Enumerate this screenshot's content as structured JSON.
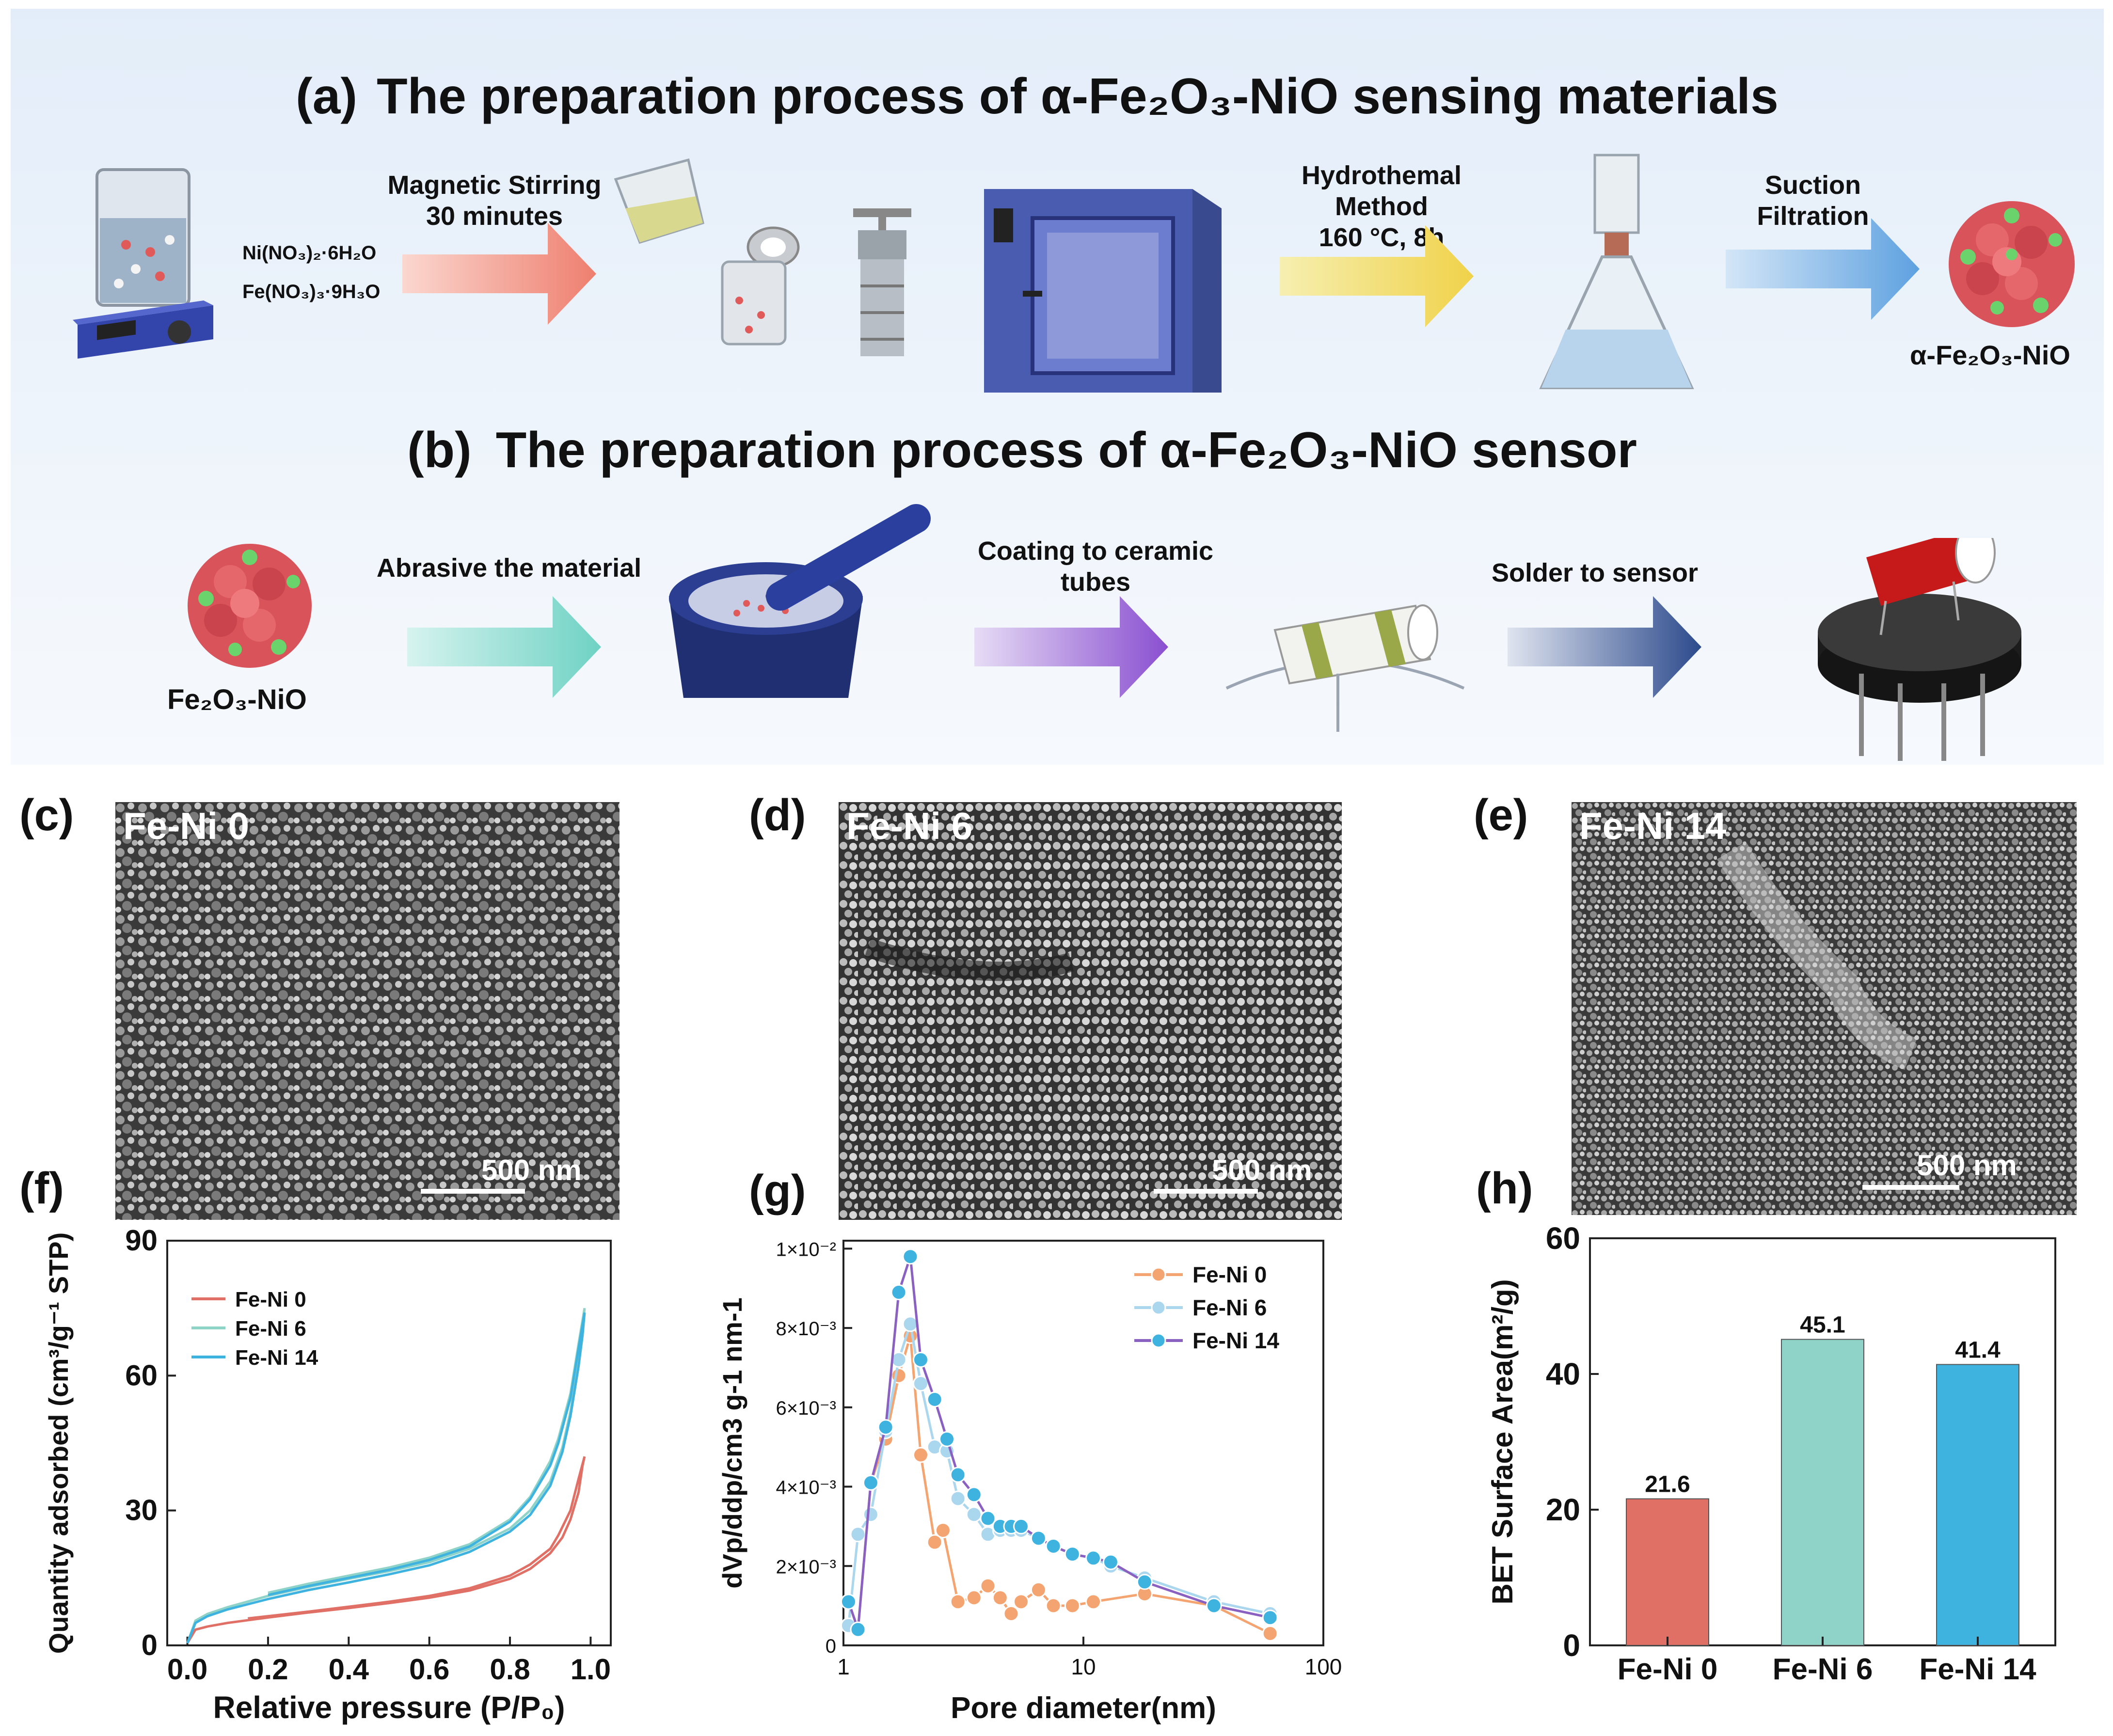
{
  "panel_a": {
    "letter": "(a)",
    "title": "The preparation process of α-Fe₂O₃-NiO sensing materials",
    "step1": [
      "Magnetic  Stirring",
      "30 minutes"
    ],
    "precursors": [
      "Ni(NO₃)₂·6H₂O",
      "Fe(NO₃)₃·9H₃O"
    ],
    "step2": [
      "Hydrothemal",
      "Method",
      "160 °C, 8h"
    ],
    "step3": [
      "Suction",
      "Filtration"
    ],
    "product": "α-Fe₂O₃-NiO"
  },
  "panel_b": {
    "letter": "(b)",
    "title": "The preparation process of α-Fe₂O₃-NiO sensor",
    "material": "Fe₂O₃-NiO",
    "step1": "Abrasive the material",
    "step2": [
      "Coating to ceramic",
      "tubes"
    ],
    "step3": "Solder to sensor"
  },
  "sem": [
    {
      "letter": "(c)",
      "label": "Fe-Ni 0",
      "scale": "500 nm"
    },
    {
      "letter": "(d)",
      "label": "Fe-Ni 6",
      "scale": "500 nm"
    },
    {
      "letter": "(e)",
      "label": "Fe-Ni 14",
      "scale": "500 nm"
    }
  ],
  "colors": {
    "fe_ni_0": "#e07066",
    "fe_ni_6": "#8fd3c8",
    "fe_ni_14": "#3fb3e0",
    "g_fe_ni_0": "#f4a470",
    "g_fe_ni_6": "#aad6ee",
    "g_fe_ni_14": "#8a60c0"
  },
  "chart_data": [
    {
      "panel": "(f)",
      "type": "line",
      "xlabel": "Relative pressure (P/P₀)",
      "ylabel": "Quantity adsorbed (cm³/g⁻¹ STP)",
      "xlim": [
        -0.05,
        1.05
      ],
      "ylim": [
        0,
        90
      ],
      "xticks": [
        "0.0",
        "0.2",
        "0.4",
        "0.6",
        "0.8",
        "1.0"
      ],
      "yticks": [
        "0",
        "30",
        "60",
        "90"
      ],
      "legend_position": "top-left",
      "series": [
        {
          "name": "Fe-Ni 0",
          "adsorption": [
            [
              0.0,
              0.5
            ],
            [
              0.02,
              3.5
            ],
            [
              0.05,
              4.2
            ],
            [
              0.1,
              5
            ],
            [
              0.2,
              6.2
            ],
            [
              0.3,
              7.3
            ],
            [
              0.4,
              8.3
            ],
            [
              0.5,
              9.4
            ],
            [
              0.6,
              10.6
            ],
            [
              0.7,
              12.2
            ],
            [
              0.8,
              14.8
            ],
            [
              0.85,
              17
            ],
            [
              0.9,
              20.5
            ],
            [
              0.93,
              24
            ],
            [
              0.95,
              28
            ],
            [
              0.97,
              34
            ],
            [
              0.98,
              40
            ],
            [
              0.985,
              42
            ]
          ],
          "desorption": [
            [
              0.985,
              42
            ],
            [
              0.97,
              37
            ],
            [
              0.95,
              30
            ],
            [
              0.92,
              24.5
            ],
            [
              0.9,
              21.5
            ],
            [
              0.85,
              18
            ],
            [
              0.8,
              15.5
            ],
            [
              0.7,
              12.7
            ],
            [
              0.6,
              11
            ],
            [
              0.5,
              9.7
            ],
            [
              0.4,
              8.6
            ],
            [
              0.3,
              7.5
            ],
            [
              0.2,
              6.5
            ],
            [
              0.15,
              6
            ]
          ]
        },
        {
          "name": "Fe-Ni 6",
          "adsorption": [
            [
              0.0,
              0.5
            ],
            [
              0.02,
              5.5
            ],
            [
              0.05,
              7
            ],
            [
              0.1,
              8.5
            ],
            [
              0.2,
              11
            ],
            [
              0.3,
              13
            ],
            [
              0.4,
              14.8
            ],
            [
              0.5,
              16.5
            ],
            [
              0.6,
              18.5
            ],
            [
              0.7,
              21.5
            ],
            [
              0.8,
              26
            ],
            [
              0.85,
              30
            ],
            [
              0.9,
              36.5
            ],
            [
              0.93,
              44
            ],
            [
              0.95,
              52
            ],
            [
              0.97,
              63
            ],
            [
              0.98,
              70
            ],
            [
              0.985,
              75
            ]
          ],
          "desorption": [
            [
              0.985,
              75
            ],
            [
              0.97,
              67
            ],
            [
              0.95,
              56
            ],
            [
              0.92,
              46
            ],
            [
              0.9,
              41
            ],
            [
              0.85,
              33
            ],
            [
              0.8,
              28
            ],
            [
              0.7,
              22.5
            ],
            [
              0.6,
              19.5
            ],
            [
              0.5,
              17.3
            ],
            [
              0.4,
              15.5
            ],
            [
              0.3,
              13.7
            ],
            [
              0.2,
              11.7
            ]
          ]
        },
        {
          "name": "Fe-Ni 14",
          "adsorption": [
            [
              0.0,
              0.5
            ],
            [
              0.02,
              5
            ],
            [
              0.05,
              6.5
            ],
            [
              0.1,
              8
            ],
            [
              0.2,
              10.3
            ],
            [
              0.3,
              12.3
            ],
            [
              0.4,
              14
            ],
            [
              0.5,
              15.8
            ],
            [
              0.6,
              17.8
            ],
            [
              0.7,
              20.8
            ],
            [
              0.8,
              25.3
            ],
            [
              0.85,
              29
            ],
            [
              0.9,
              35.5
            ],
            [
              0.93,
              43
            ],
            [
              0.95,
              51
            ],
            [
              0.97,
              62
            ],
            [
              0.98,
              69
            ],
            [
              0.985,
              74
            ]
          ],
          "desorption": [
            [
              0.985,
              74
            ],
            [
              0.97,
              66
            ],
            [
              0.95,
              55
            ],
            [
              0.92,
              45
            ],
            [
              0.9,
              40
            ],
            [
              0.85,
              32.5
            ],
            [
              0.8,
              27.5
            ],
            [
              0.7,
              22
            ],
            [
              0.6,
              19
            ],
            [
              0.5,
              16.8
            ],
            [
              0.4,
              15
            ],
            [
              0.3,
              13.2
            ],
            [
              0.2,
              11.2
            ]
          ]
        }
      ]
    },
    {
      "panel": "(g)",
      "type": "line",
      "xscale": "log",
      "xlabel": "Pore diameter(nm)",
      "ylabel": "dVp/ddp/cm3 g-1 nm-1",
      "xlim": [
        1,
        100
      ],
      "ylim": [
        0,
        0.0102
      ],
      "xticks": [
        "1",
        "10",
        "100"
      ],
      "yticks": [
        "0",
        "2×10⁻³",
        "4×10⁻³",
        "6×10⁻³",
        "8×10⁻³",
        "1×10⁻²"
      ],
      "legend_position": "top-right",
      "series": [
        {
          "name": "Fe-Ni 0",
          "points": [
            [
              1.05,
              0.0011
            ],
            [
              1.15,
              0.0004
            ],
            [
              1.3,
              0.0041
            ],
            [
              1.5,
              0.0052
            ],
            [
              1.7,
              0.0068
            ],
            [
              1.9,
              0.0078
            ],
            [
              2.1,
              0.0048
            ],
            [
              2.4,
              0.0026
            ],
            [
              2.6,
              0.0029
            ],
            [
              3.0,
              0.0011
            ],
            [
              3.5,
              0.0012
            ],
            [
              4.0,
              0.0015
            ],
            [
              4.5,
              0.0012
            ],
            [
              5.0,
              0.0008
            ],
            [
              5.5,
              0.0011
            ],
            [
              6.5,
              0.0014
            ],
            [
              7.5,
              0.001
            ],
            [
              9.0,
              0.001
            ],
            [
              11,
              0.0011
            ],
            [
              18,
              0.0013
            ],
            [
              35,
              0.001
            ],
            [
              60,
              0.0003
            ]
          ]
        },
        {
          "name": "Fe-Ni 6",
          "points": [
            [
              1.05,
              0.0005
            ],
            [
              1.15,
              0.0028
            ],
            [
              1.3,
              0.0033
            ],
            [
              1.5,
              0.0054
            ],
            [
              1.7,
              0.0072
            ],
            [
              1.9,
              0.0081
            ],
            [
              2.1,
              0.0066
            ],
            [
              2.4,
              0.005
            ],
            [
              2.7,
              0.0049
            ],
            [
              3.0,
              0.0037
            ],
            [
              3.5,
              0.0033
            ],
            [
              4.0,
              0.0028
            ],
            [
              4.5,
              0.0029
            ],
            [
              5.0,
              0.0029
            ],
            [
              5.5,
              0.0029
            ],
            [
              6.5,
              0.0027
            ],
            [
              7.5,
              0.0025
            ],
            [
              9.0,
              0.0023
            ],
            [
              11,
              0.0022
            ],
            [
              13,
              0.002
            ],
            [
              18,
              0.0017
            ],
            [
              35,
              0.0011
            ],
            [
              60,
              0.0008
            ]
          ]
        },
        {
          "name": "Fe-Ni 14",
          "points": [
            [
              1.05,
              0.0011
            ],
            [
              1.15,
              0.0004
            ],
            [
              1.3,
              0.0041
            ],
            [
              1.5,
              0.0055
            ],
            [
              1.7,
              0.0089
            ],
            [
              1.9,
              0.0098
            ],
            [
              2.1,
              0.0072
            ],
            [
              2.4,
              0.0062
            ],
            [
              2.7,
              0.0052
            ],
            [
              3.0,
              0.0043
            ],
            [
              3.5,
              0.0038
            ],
            [
              4.0,
              0.0032
            ],
            [
              4.5,
              0.003
            ],
            [
              5.0,
              0.003
            ],
            [
              5.5,
              0.003
            ],
            [
              6.5,
              0.0027
            ],
            [
              7.5,
              0.0025
            ],
            [
              9.0,
              0.0023
            ],
            [
              11,
              0.0022
            ],
            [
              13,
              0.0021
            ],
            [
              18,
              0.0016
            ],
            [
              35,
              0.001
            ],
            [
              60,
              0.0007
            ]
          ]
        }
      ]
    },
    {
      "panel": "(h)",
      "type": "bar",
      "ylabel": "BET Surface Area(m²/g)",
      "categories": [
        "Fe-Ni 0",
        "Fe-Ni 6",
        "Fe-Ni 14"
      ],
      "values": [
        21.6,
        45.1,
        41.4
      ],
      "labels": [
        "21.6",
        "45.1",
        "41.4"
      ],
      "ylim": [
        0,
        60
      ],
      "yticks": [
        "0",
        "20",
        "40",
        "60"
      ]
    }
  ]
}
